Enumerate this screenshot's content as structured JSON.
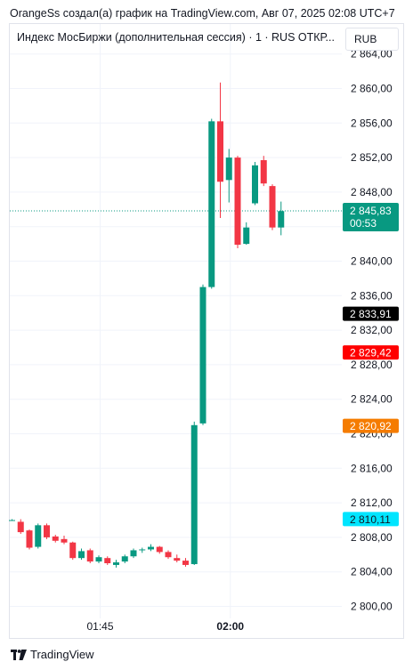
{
  "header": {
    "title": "OrangeSs создал(а) график на TradingView.com, Авг 07, 2025 02:08 UTC+7"
  },
  "legend": {
    "text": "Индекс МосБиржи (дополнительная сессия) · 1 · RUS  ОТКР..."
  },
  "currency_button": {
    "label": "RUB"
  },
  "footer": {
    "brand": "TradingView"
  },
  "colors": {
    "up": "#089981",
    "down": "#f23645",
    "grid": "#f0f3fa"
  },
  "chart_data": {
    "type": "candlestick",
    "x_ticks": [
      {
        "label": "01:45",
        "bold": false,
        "at": 10
      },
      {
        "label": "02:00",
        "bold": true,
        "at": 25
      }
    ],
    "y_ticks": [
      2800,
      2804,
      2808,
      2812,
      2816,
      2820,
      2824,
      2828,
      2832,
      2836,
      2840,
      2844,
      2848,
      2852,
      2856,
      2860,
      2864
    ],
    "y_tick_labels": [
      "2 800,00",
      "2 804,00",
      "2 808,00",
      "2 812,00",
      "2 816,00",
      "2 820,00",
      "2 824,00",
      "2 828,00",
      "2 832,00",
      "2 836,00",
      "2 840,00",
      "2 844,00",
      "2 848,00",
      "2 852,00",
      "2 856,00",
      "2 860,00",
      "2 864,00"
    ],
    "ylim": [
      2799,
      2864.6
    ],
    "current_price": {
      "value": 2845.83,
      "label": "2 845,83",
      "countdown": "00:53",
      "color": "#089981"
    },
    "price_markers": [
      {
        "value": 2833.91,
        "label": "2 833,91",
        "bg": "#000000",
        "fg": "#ffffff"
      },
      {
        "value": 2829.42,
        "label": "2 829,42",
        "bg": "#ff0000",
        "fg": "#ffffff"
      },
      {
        "value": 2820.92,
        "label": "2 820,92",
        "bg": "#f57c00",
        "fg": "#ffffff"
      },
      {
        "value": 2810.11,
        "label": "2 810,11",
        "bg": "#00e5ff",
        "fg": "#131722"
      }
    ],
    "candles": [
      {
        "o": 2810.0,
        "h": 2810.1,
        "l": 2809.9,
        "c": 2810.0
      },
      {
        "o": 2809.8,
        "h": 2810.1,
        "l": 2808.4,
        "c": 2808.6
      },
      {
        "o": 2808.8,
        "h": 2808.9,
        "l": 2806.6,
        "c": 2806.8
      },
      {
        "o": 2806.9,
        "h": 2809.6,
        "l": 2806.7,
        "c": 2809.4
      },
      {
        "o": 2809.4,
        "h": 2809.6,
        "l": 2807.8,
        "c": 2808.0
      },
      {
        "o": 2808.1,
        "h": 2808.3,
        "l": 2807.4,
        "c": 2807.6
      },
      {
        "o": 2807.8,
        "h": 2808.2,
        "l": 2807.2,
        "c": 2807.4
      },
      {
        "o": 2807.4,
        "h": 2807.5,
        "l": 2805.4,
        "c": 2805.6
      },
      {
        "o": 2805.6,
        "h": 2806.7,
        "l": 2805.4,
        "c": 2806.4
      },
      {
        "o": 2806.5,
        "h": 2806.7,
        "l": 2805.0,
        "c": 2805.2
      },
      {
        "o": 2805.2,
        "h": 2805.9,
        "l": 2805.0,
        "c": 2805.7
      },
      {
        "o": 2805.6,
        "h": 2805.8,
        "l": 2804.8,
        "c": 2805.0
      },
      {
        "o": 2804.8,
        "h": 2805.4,
        "l": 2804.5,
        "c": 2805.1
      },
      {
        "o": 2805.2,
        "h": 2806.0,
        "l": 2805.0,
        "c": 2805.8
      },
      {
        "o": 2805.8,
        "h": 2806.7,
        "l": 2805.6,
        "c": 2806.5
      },
      {
        "o": 2806.5,
        "h": 2806.8,
        "l": 2806.2,
        "c": 2806.6
      },
      {
        "o": 2806.6,
        "h": 2807.2,
        "l": 2806.4,
        "c": 2806.9
      },
      {
        "o": 2806.9,
        "h": 2807.0,
        "l": 2806.1,
        "c": 2806.3
      },
      {
        "o": 2806.3,
        "h": 2806.5,
        "l": 2805.5,
        "c": 2805.7
      },
      {
        "o": 2805.6,
        "h": 2806.0,
        "l": 2805.1,
        "c": 2805.3
      },
      {
        "o": 2805.3,
        "h": 2805.6,
        "l": 2804.6,
        "c": 2804.8
      },
      {
        "o": 2804.9,
        "h": 2821.4,
        "l": 2804.8,
        "c": 2821.0
      },
      {
        "o": 2821.2,
        "h": 2837.3,
        "l": 2821.0,
        "c": 2837.0
      },
      {
        "o": 2837.0,
        "h": 2856.5,
        "l": 2836.8,
        "c": 2856.2
      },
      {
        "o": 2856.2,
        "h": 2860.7,
        "l": 2845.0,
        "c": 2849.2
      },
      {
        "o": 2849.4,
        "h": 2853.0,
        "l": 2846.8,
        "c": 2852.0
      },
      {
        "o": 2852.0,
        "h": 2852.2,
        "l": 2841.5,
        "c": 2841.9
      },
      {
        "o": 2842.0,
        "h": 2844.5,
        "l": 2841.9,
        "c": 2843.9
      },
      {
        "o": 2846.7,
        "h": 2851.5,
        "l": 2846.5,
        "c": 2851.1
      },
      {
        "o": 2851.7,
        "h": 2852.2,
        "l": 2848.7,
        "c": 2849.0
      },
      {
        "o": 2848.7,
        "h": 2848.9,
        "l": 2843.6,
        "c": 2843.9
      },
      {
        "o": 2843.9,
        "h": 2846.9,
        "l": 2843.0,
        "c": 2845.8
      }
    ]
  }
}
